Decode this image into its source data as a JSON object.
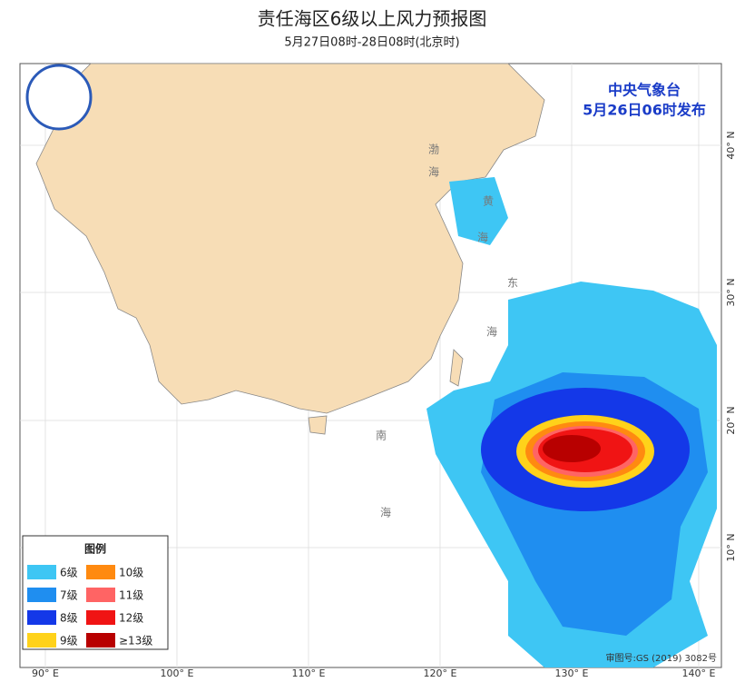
{
  "header": {
    "title": "责任海区6级以上风力预报图",
    "subtitle": "5月27日08时-28日08时(北京时)"
  },
  "issuer": {
    "name": "中央气象台",
    "time": "5月26日06时发布"
  },
  "axes": {
    "longitude": [
      "90° E",
      "100° E",
      "110° E",
      "120° E",
      "130° E",
      "140° E"
    ],
    "latitude": [
      "40° N",
      "30° N",
      "20° N",
      "10° N"
    ]
  },
  "seas": [
    "渤",
    "海",
    "黄",
    "海",
    "东",
    "海",
    "南",
    "海"
  ],
  "legend": {
    "title": "图例",
    "items": [
      {
        "label": "6级",
        "color": "#3ec6f4"
      },
      {
        "label": "7级",
        "color": "#1f8ef0"
      },
      {
        "label": "8级",
        "color": "#1438e8"
      },
      {
        "label": "9级",
        "color": "#ffd21a"
      },
      {
        "label": "10级",
        "color": "#ff8a10"
      },
      {
        "label": "11级",
        "color": "#ff6464"
      },
      {
        "label": "12级",
        "color": "#f01414"
      },
      {
        "label": "≥13级",
        "color": "#b80000"
      }
    ]
  },
  "footer": {
    "review": "审图号:GS (2019) 3082号"
  }
}
